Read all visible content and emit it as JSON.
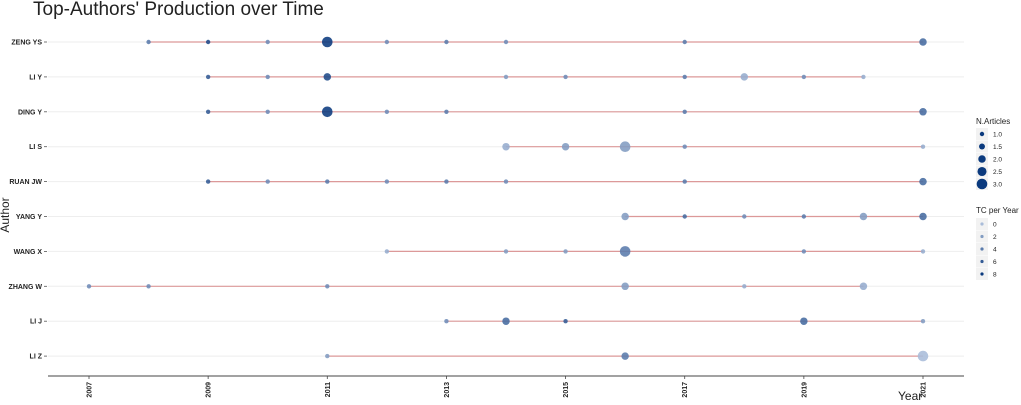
{
  "chart_data": {
    "type": "scatter",
    "title": "Top-Authors' Production over Time",
    "xlabel": "Year",
    "ylabel": "Author",
    "xlim": [
      2007,
      2021
    ],
    "x_ticks": [
      "2007",
      "2009",
      "2011",
      "2013",
      "2015",
      "2017",
      "2019",
      "2021"
    ],
    "colors": {
      "segment": "#d88a8a",
      "point_dark": "#0b3a7e",
      "point_light": "#a9bcd9",
      "grid": "#eeeeee"
    },
    "authors": [
      {
        "name": "ZENG YS",
        "span": [
          2008,
          2021
        ],
        "points": [
          {
            "year": 2008,
            "articles": 1,
            "tc": 4
          },
          {
            "year": 2009,
            "articles": 1,
            "tc": 7
          },
          {
            "year": 2010,
            "articles": 1,
            "tc": 3
          },
          {
            "year": 2011,
            "articles": 3,
            "tc": 8
          },
          {
            "year": 2012,
            "articles": 1,
            "tc": 3
          },
          {
            "year": 2013,
            "articles": 1,
            "tc": 4
          },
          {
            "year": 2014,
            "articles": 1,
            "tc": 3
          },
          {
            "year": 2017,
            "articles": 1,
            "tc": 4
          },
          {
            "year": 2021,
            "articles": 2,
            "tc": 5
          }
        ]
      },
      {
        "name": "LI Y",
        "span": [
          2009,
          2020
        ],
        "points": [
          {
            "year": 2009,
            "articles": 1,
            "tc": 6
          },
          {
            "year": 2010,
            "articles": 1,
            "tc": 3
          },
          {
            "year": 2011,
            "articles": 2,
            "tc": 7
          },
          {
            "year": 2014,
            "articles": 1,
            "tc": 2
          },
          {
            "year": 2015,
            "articles": 1,
            "tc": 3
          },
          {
            "year": 2017,
            "articles": 1,
            "tc": 4
          },
          {
            "year": 2018,
            "articles": 2,
            "tc": 1
          },
          {
            "year": 2019,
            "articles": 1,
            "tc": 3
          },
          {
            "year": 2020,
            "articles": 1,
            "tc": 1
          }
        ]
      },
      {
        "name": "DING Y",
        "span": [
          2009,
          2021
        ],
        "points": [
          {
            "year": 2009,
            "articles": 1,
            "tc": 6
          },
          {
            "year": 2010,
            "articles": 1,
            "tc": 3
          },
          {
            "year": 2011,
            "articles": 3,
            "tc": 8
          },
          {
            "year": 2012,
            "articles": 1,
            "tc": 3
          },
          {
            "year": 2013,
            "articles": 1,
            "tc": 4
          },
          {
            "year": 2017,
            "articles": 1,
            "tc": 4
          },
          {
            "year": 2021,
            "articles": 2,
            "tc": 5
          }
        ]
      },
      {
        "name": "LI S",
        "span": [
          2014,
          2021
        ],
        "points": [
          {
            "year": 2014,
            "articles": 2,
            "tc": 1
          },
          {
            "year": 2015,
            "articles": 2,
            "tc": 2
          },
          {
            "year": 2016,
            "articles": 3,
            "tc": 2
          },
          {
            "year": 2017,
            "articles": 1,
            "tc": 3
          },
          {
            "year": 2021,
            "articles": 1,
            "tc": 1
          }
        ]
      },
      {
        "name": "RUAN JW",
        "span": [
          2009,
          2021
        ],
        "points": [
          {
            "year": 2009,
            "articles": 1,
            "tc": 6
          },
          {
            "year": 2010,
            "articles": 1,
            "tc": 3
          },
          {
            "year": 2011,
            "articles": 1,
            "tc": 4
          },
          {
            "year": 2012,
            "articles": 1,
            "tc": 3
          },
          {
            "year": 2013,
            "articles": 1,
            "tc": 4
          },
          {
            "year": 2014,
            "articles": 1,
            "tc": 3
          },
          {
            "year": 2017,
            "articles": 1,
            "tc": 4
          },
          {
            "year": 2021,
            "articles": 2,
            "tc": 5
          }
        ]
      },
      {
        "name": "YANG Y",
        "span": [
          2016,
          2021
        ],
        "points": [
          {
            "year": 2016,
            "articles": 2,
            "tc": 2
          },
          {
            "year": 2017,
            "articles": 1,
            "tc": 5
          },
          {
            "year": 2018,
            "articles": 1,
            "tc": 3
          },
          {
            "year": 2019,
            "articles": 1,
            "tc": 4
          },
          {
            "year": 2020,
            "articles": 2,
            "tc": 2
          },
          {
            "year": 2021,
            "articles": 2,
            "tc": 5
          }
        ]
      },
      {
        "name": "WANG X",
        "span": [
          2012,
          2021
        ],
        "points": [
          {
            "year": 2012,
            "articles": 1,
            "tc": 1
          },
          {
            "year": 2014,
            "articles": 1,
            "tc": 2
          },
          {
            "year": 2015,
            "articles": 1,
            "tc": 2
          },
          {
            "year": 2016,
            "articles": 3,
            "tc": 4
          },
          {
            "year": 2019,
            "articles": 1,
            "tc": 3
          },
          {
            "year": 2021,
            "articles": 1,
            "tc": 1
          }
        ]
      },
      {
        "name": "ZHANG W",
        "span": [
          2007,
          2020
        ],
        "points": [
          {
            "year": 2007,
            "articles": 1,
            "tc": 3
          },
          {
            "year": 2008,
            "articles": 1,
            "tc": 3
          },
          {
            "year": 2011,
            "articles": 1,
            "tc": 3
          },
          {
            "year": 2016,
            "articles": 2,
            "tc": 2
          },
          {
            "year": 2018,
            "articles": 1,
            "tc": 1
          },
          {
            "year": 2020,
            "articles": 2,
            "tc": 1
          }
        ]
      },
      {
        "name": "LI J",
        "span": [
          2013,
          2021
        ],
        "points": [
          {
            "year": 2013,
            "articles": 1,
            "tc": 3
          },
          {
            "year": 2014,
            "articles": 2,
            "tc": 5
          },
          {
            "year": 2015,
            "articles": 1,
            "tc": 6
          },
          {
            "year": 2019,
            "articles": 2,
            "tc": 5
          },
          {
            "year": 2021,
            "articles": 1,
            "tc": 2
          }
        ]
      },
      {
        "name": "LI Z",
        "span": [
          2011,
          2021
        ],
        "points": [
          {
            "year": 2011,
            "articles": 1,
            "tc": 2
          },
          {
            "year": 2016,
            "articles": 2,
            "tc": 4
          },
          {
            "year": 2021,
            "articles": 3,
            "tc": 0
          }
        ]
      }
    ],
    "legend": {
      "placement": "right",
      "size": {
        "title": "N.Articles",
        "labels": [
          "1.0",
          "1.5",
          "2.0",
          "2.5",
          "3.0"
        ],
        "values": [
          1,
          1.5,
          2,
          2.5,
          3
        ]
      },
      "color": {
        "title": "TC per Year",
        "labels": [
          "0",
          "2",
          "4",
          "6",
          "8"
        ],
        "values": [
          0,
          2,
          4,
          6,
          8
        ]
      }
    }
  }
}
